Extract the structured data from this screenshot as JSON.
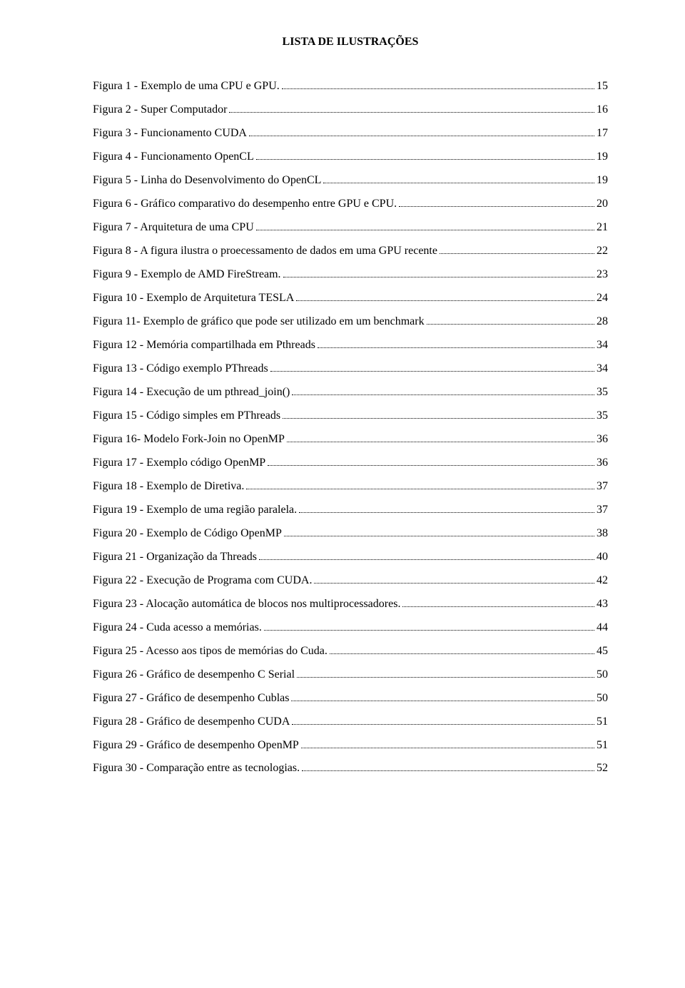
{
  "title": "LISTA DE ILUSTRAÇÕES",
  "entries": [
    {
      "label": "Figura 1 - Exemplo de uma CPU e GPU.",
      "page": "15"
    },
    {
      "label": "Figura 2 - Super Computador",
      "page": "16"
    },
    {
      "label": "Figura 3 - Funcionamento CUDA",
      "page": "17"
    },
    {
      "label": "Figura 4 - Funcionamento OpenCL",
      "page": "19"
    },
    {
      "label": "Figura 5 - Linha do Desenvolvimento do OpenCL",
      "page": "19"
    },
    {
      "label": "Figura 6 - Gráfico comparativo do desempenho entre GPU e CPU.",
      "page": "20"
    },
    {
      "label": "Figura 7 - Arquitetura de uma CPU",
      "page": "21"
    },
    {
      "label": "Figura 8 - A figura ilustra o proecessamento de dados em uma GPU recente",
      "page": "22"
    },
    {
      "label": "Figura 9 - Exemplo de AMD FireStream.",
      "page": "23"
    },
    {
      "label": "Figura 10 - Exemplo de Arquitetura TESLA",
      "page": "24"
    },
    {
      "label": "Figura 11- Exemplo de gráfico que pode ser utilizado em um benchmark",
      "page": "28"
    },
    {
      "label": "Figura 12 - Memória compartilhada em Pthreads",
      "page": "34"
    },
    {
      "label": "Figura 13 - Código exemplo PThreads",
      "page": "34"
    },
    {
      "label": "Figura 14 - Execução de um pthread_join()",
      "page": "35"
    },
    {
      "label": "Figura 15 - Código simples em PThreads",
      "page": "35"
    },
    {
      "label": "Figura 16- Modelo Fork-Join no OpenMP",
      "page": "36"
    },
    {
      "label": "Figura 17 - Exemplo código OpenMP",
      "page": "36"
    },
    {
      "label": "Figura 18 - Exemplo de Diretiva.",
      "page": "37"
    },
    {
      "label": "Figura 19 - Exemplo de uma região paralela.",
      "page": "37"
    },
    {
      "label": "Figura 20 - Exemplo de Código OpenMP",
      "page": "38"
    },
    {
      "label": "Figura 21 - Organização da Threads",
      "page": "40"
    },
    {
      "label": "Figura 22 - Execução de Programa com CUDA.",
      "page": "42"
    },
    {
      "label": "Figura 23 - Alocação automática de blocos nos multiprocessadores.",
      "page": "43"
    },
    {
      "label": "Figura 24 - Cuda acesso a memórias.",
      "page": "44"
    },
    {
      "label": "Figura 25 - Acesso aos tipos de memórias do Cuda.",
      "page": "45"
    },
    {
      "label": "Figura 26 - Gráfico de desempenho C Serial",
      "page": "50"
    },
    {
      "label": "Figura 27 - Gráfico de desempenho Cublas",
      "page": "50"
    },
    {
      "label": "Figura 28 - Gráfico de desempenho CUDA",
      "page": "51"
    },
    {
      "label": "Figura 29 - Gráfico de desempenho OpenMP",
      "page": "51"
    },
    {
      "label": "Figura 30 - Comparação entre as tecnologias.",
      "page": "52"
    }
  ]
}
